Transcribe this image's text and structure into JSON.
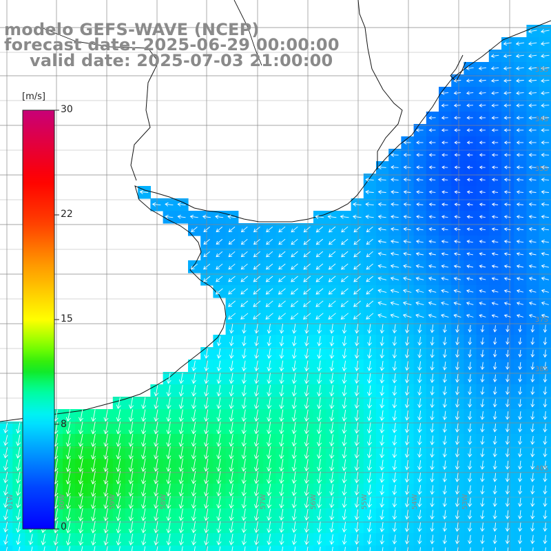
{
  "header": {
    "model": "modelo GEFS-WAVE (NCEP)",
    "forecast_date": "forecast date: 2025-06-29 00:00:00",
    "valid_date": "valid date: 2025-07-03 21:00:00"
  },
  "colorbar": {
    "unit": "[m/s]",
    "ticks": [
      "30",
      "22",
      "15",
      "8",
      "0"
    ],
    "tick_values": [
      30,
      22,
      15,
      8,
      0
    ],
    "range": [
      0,
      30
    ],
    "colors": [
      "#0000ff",
      "#0080ff",
      "#00e5ff",
      "#00ff80",
      "#10e000",
      "#80ff00",
      "#ffff00",
      "#ffb000",
      "#ff6000",
      "#ff0000",
      "#ff0050",
      "#c80078"
    ]
  },
  "axes": {
    "lat_labels": [
      "33S",
      "34S",
      "35S",
      "37S",
      "38S",
      "40S"
    ],
    "lon_labels": [
      "61W",
      "60W",
      "59W",
      "58W",
      "57W",
      "56W",
      "55W",
      "54W",
      "53W"
    ]
  },
  "legend": {
    "field": "wind speed",
    "arrows": "wind direction vectors (white)"
  }
}
